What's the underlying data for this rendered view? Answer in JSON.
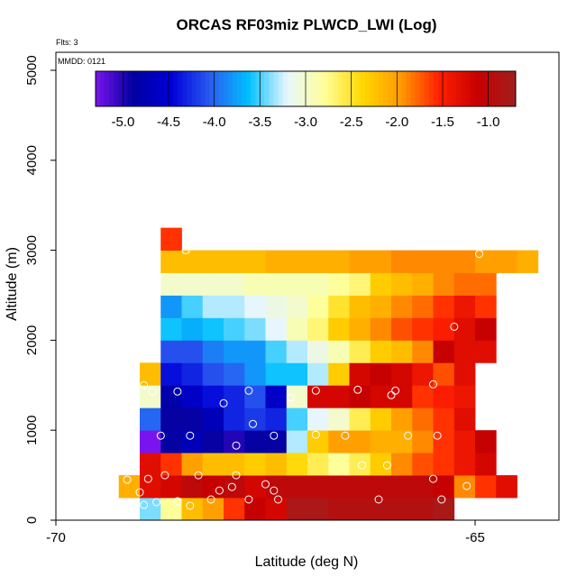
{
  "chart_data": {
    "type": "heatmap",
    "title": "ORCAS RF03miz PLWCD_LWI (Log)",
    "annotation_flights": "Flts: 3",
    "annotation_date": "MMDD: 0121",
    "xlabel": "Latitude (deg N)",
    "ylabel": "Altitude (m)",
    "xlim": [
      -70,
      -64
    ],
    "ylim": [
      0,
      5200
    ],
    "x_ticks": [
      -70,
      -65
    ],
    "x_tick_labels": [
      "-70",
      "-65"
    ],
    "y_ticks": [
      0,
      1000,
      2000,
      3000,
      4000,
      5000
    ],
    "y_tick_labels": [
      "0",
      "1000",
      "2000",
      "3000",
      "4000",
      "5000"
    ],
    "colorbar": {
      "range": [
        -5.3,
        -0.7
      ],
      "ticks": [
        -5.0,
        -4.5,
        -4.0,
        -3.5,
        -3.0,
        -2.5,
        -2.0,
        -1.5,
        -1.0
      ],
      "tick_labels": [
        "-5.0",
        "-4.5",
        "-4.0",
        "-3.5",
        "-3.0",
        "-2.5",
        "-2.0",
        "-1.5",
        "-1.0"
      ],
      "colors": [
        "#7a14ee",
        "#0000a0",
        "#0000d8",
        "#2a5cf0",
        "#00bfff",
        "#e6f6ff",
        "#ffff99",
        "#ffd700",
        "#ff9900",
        "#ff2000",
        "#c80000",
        "#a02020"
      ]
    },
    "bin": {
      "x0": -69.25,
      "dx": 0.25,
      "dy": 250
    },
    "rows": [
      {
        "alt": 0,
        "x0": -69.0,
        "values": [
          -3.4,
          -2.8,
          -2.2,
          -2.0,
          -1.6,
          -1.1,
          -1.2,
          -0.8,
          -0.8,
          -0.9,
          -0.9,
          -0.9,
          -0.9,
          -0.9,
          -0.8
        ]
      },
      {
        "alt": 250,
        "x0": -69.25,
        "values": [
          -2.1,
          -1.3,
          -1.2,
          -1.0,
          -1.1,
          -1.0,
          -1.2,
          -1.0,
          -1.0,
          -1.0,
          -1.0,
          -1.0,
          -1.0,
          -1.0,
          -1.0,
          -1.1,
          -1.9,
          -1.6,
          -1.3
        ]
      },
      {
        "alt": 500,
        "x0": -69.0,
        "values": [
          -1.3,
          -1.6,
          -2.0,
          -2.2,
          -2.2,
          -2.3,
          -2.2,
          -2.4,
          -2.6,
          -2.8,
          -2.6,
          -2.3,
          -1.9,
          -1.7,
          -1.6,
          -1.4,
          -1.2
        ]
      },
      {
        "alt": 750,
        "x0": -69.0,
        "values": [
          -5.3,
          -4.9,
          -4.7,
          -4.9,
          -5.0,
          -4.9,
          -4.9,
          -3.3,
          -2.3,
          -2.0,
          -2.0,
          -2.1,
          -2.1,
          -1.9,
          -1.6,
          -1.4,
          -1.1
        ]
      },
      {
        "alt": 1000,
        "x0": -69.0,
        "values": [
          -4.0,
          -4.9,
          -4.9,
          -4.7,
          -4.3,
          -4.2,
          -4.3,
          -3.5,
          -3.2,
          -3.0,
          -2.6,
          -2.3,
          -2.0,
          -1.8,
          -1.6,
          -1.3
        ]
      },
      {
        "alt": 1250,
        "x0": -69.0,
        "values": [
          -3.0,
          -4.8,
          -4.6,
          -4.4,
          -4.3,
          -4.1,
          -4.6,
          -3.0,
          -1.2,
          -1.2,
          -1.1,
          -1.2,
          -1.2,
          -1.6,
          -1.5,
          -1.4
        ]
      },
      {
        "alt": 1500,
        "x0": -69.0,
        "values": [
          -2.2,
          -4.4,
          -4.3,
          -4.1,
          -4.0,
          -3.8,
          -3.6,
          -3.6,
          -3.3,
          -2.3,
          -1.2,
          -1.1,
          -1.2,
          -1.4,
          -1.7,
          -1.3
        ]
      },
      {
        "alt": 1750,
        "x0": -68.75,
        "values": [
          -4.1,
          -4.1,
          -3.9,
          -3.8,
          -3.8,
          -3.5,
          -3.3,
          -3.1,
          -2.9,
          -2.6,
          -2.3,
          -2.2,
          -1.9,
          -1.1,
          -1.3,
          -1.3
        ]
      },
      {
        "alt": 2000,
        "x0": -68.75,
        "values": [
          -3.6,
          -3.7,
          -3.6,
          -3.5,
          -3.4,
          -3.2,
          -2.9,
          -2.7,
          -2.3,
          -2.1,
          -1.9,
          -1.7,
          -1.6,
          -1.5,
          -1.3,
          -1.1
        ]
      },
      {
        "alt": 2250,
        "x0": -68.75,
        "values": [
          -3.8,
          -3.5,
          -3.3,
          -3.3,
          -3.2,
          -3.1,
          -3.0,
          -2.8,
          -2.5,
          -2.2,
          -2.1,
          -1.9,
          -1.8,
          -1.6,
          -1.4,
          -1.6
        ]
      },
      {
        "alt": 2500,
        "x0": -68.75,
        "values": [
          -3.0,
          -3.0,
          -3.0,
          -3.0,
          -2.9,
          -2.9,
          -2.9,
          -2.9,
          -2.8,
          -2.7,
          -2.3,
          -2.2,
          -2.1,
          -1.9,
          -1.8,
          -1.8
        ]
      },
      {
        "alt": 2750,
        "x0": -68.75,
        "values": [
          -2.2,
          -2.2,
          -2.2,
          -2.2,
          -2.2,
          -2.1,
          -2.1,
          -2.1,
          -2.1,
          -2.0,
          -2.0,
          -1.9,
          -1.9,
          -1.9,
          -1.9,
          -2.0,
          -2.0,
          -2.1
        ]
      },
      {
        "alt": 3000,
        "x0": -68.75,
        "values": [
          -1.6
        ]
      }
    ],
    "points": [
      [
        -68.95,
        170
      ],
      [
        -68.8,
        200
      ],
      [
        -68.55,
        210
      ],
      [
        -68.4,
        160
      ],
      [
        -68.15,
        230
      ],
      [
        -68.05,
        330
      ],
      [
        -67.9,
        370
      ],
      [
        -67.7,
        230
      ],
      [
        -67.4,
        330
      ],
      [
        -67.35,
        230
      ],
      [
        -67.5,
        400
      ],
      [
        -69.0,
        310
      ],
      [
        -68.9,
        460
      ],
      [
        -68.7,
        500
      ],
      [
        -68.3,
        500
      ],
      [
        -67.85,
        500
      ],
      [
        -69.15,
        450
      ],
      [
        -69.05,
        940
      ],
      [
        -68.75,
        940
      ],
      [
        -68.4,
        940
      ],
      [
        -67.85,
        830
      ],
      [
        -67.65,
        1070
      ],
      [
        -67.4,
        940
      ],
      [
        -66.9,
        950
      ],
      [
        -66.55,
        940
      ],
      [
        -66.35,
        610
      ],
      [
        -66.05,
        610
      ],
      [
        -65.8,
        940
      ],
      [
        -65.45,
        940
      ],
      [
        -65.5,
        460
      ],
      [
        -65.1,
        380
      ],
      [
        -65.4,
        230
      ],
      [
        -66.15,
        230
      ],
      [
        -68.85,
        1430
      ],
      [
        -68.55,
        1430
      ],
      [
        -68.0,
        1300
      ],
      [
        -67.7,
        1440
      ],
      [
        -67.2,
        1360
      ],
      [
        -66.9,
        1440
      ],
      [
        -66.4,
        1450
      ],
      [
        -66.0,
        1390
      ],
      [
        -65.95,
        1440
      ],
      [
        -65.5,
        1510
      ],
      [
        -68.95,
        1500
      ],
      [
        -68.85,
        1970
      ],
      [
        -68.8,
        2310
      ],
      [
        -68.45,
        3000
      ],
      [
        -65.25,
        2150
      ],
      [
        -64.95,
        2960
      ]
    ]
  }
}
